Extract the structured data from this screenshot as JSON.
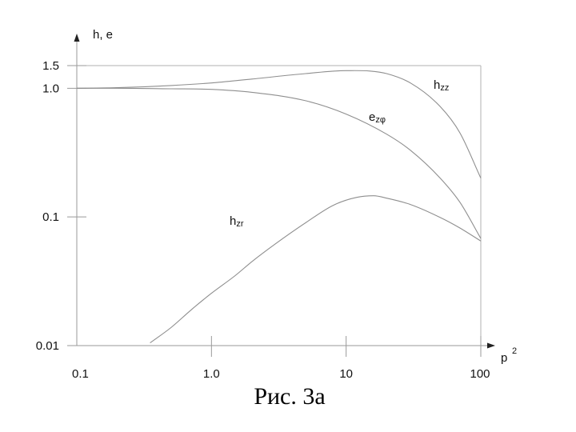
{
  "chart_data": {
    "type": "line",
    "xscale": "log",
    "yscale": "log",
    "xlim": [
      0.1,
      100
    ],
    "ylim": [
      0.01,
      1.5
    ],
    "ylabel": "h, e",
    "xlabel": {
      "base": "p",
      "sup": "2"
    },
    "xticks": [
      {
        "value": 0.1,
        "label": "0.1"
      },
      {
        "value": 1,
        "label": "1.0"
      },
      {
        "value": 10,
        "label": "10"
      },
      {
        "value": 100,
        "label": "100"
      }
    ],
    "yticks": [
      {
        "value": 0.01,
        "label": "0.01"
      },
      {
        "value": 0.1,
        "label": "0.1"
      },
      {
        "value": 1,
        "label": "1.0"
      },
      {
        "value": 1.5,
        "label": "1.5"
      }
    ],
    "series": [
      {
        "name": "hzz",
        "label_main": "h",
        "label_sub": "zz",
        "x": [
          0.1,
          0.2,
          0.5,
          1,
          2,
          5,
          10,
          15,
          20,
          30,
          50,
          70,
          100
        ],
        "y": [
          1.0,
          1.01,
          1.05,
          1.1,
          1.18,
          1.3,
          1.37,
          1.36,
          1.3,
          1.1,
          0.72,
          0.45,
          0.2
        ]
      },
      {
        "name": "ezφ",
        "label_main": "e",
        "label_sub": "zφ",
        "x": [
          0.1,
          0.2,
          0.5,
          1,
          2,
          5,
          10,
          20,
          30,
          50,
          70,
          100
        ],
        "y": [
          1.0,
          1.0,
          0.99,
          0.98,
          0.93,
          0.8,
          0.63,
          0.44,
          0.33,
          0.2,
          0.13,
          0.068
        ]
      },
      {
        "name": "hzr",
        "label_main": "h",
        "label_sub": "zr",
        "x": [
          0.35,
          0.5,
          0.7,
          1,
          1.5,
          2,
          3,
          5,
          8,
          12,
          16,
          20,
          30,
          50,
          70,
          100
        ],
        "y": [
          0.0105,
          0.0138,
          0.0188,
          0.0255,
          0.035,
          0.045,
          0.062,
          0.09,
          0.123,
          0.142,
          0.146,
          0.14,
          0.125,
          0.099,
          0.082,
          0.065
        ]
      }
    ]
  },
  "caption": "Рис. 3а"
}
